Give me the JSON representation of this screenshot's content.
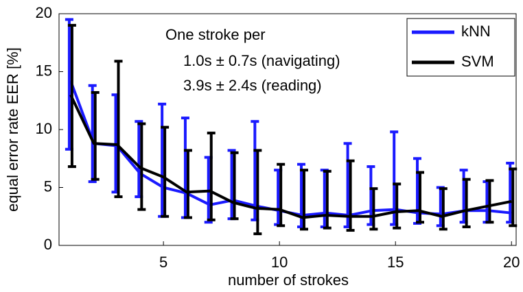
{
  "chart_data": {
    "type": "errorbar-line",
    "xlabel": "number of strokes",
    "ylabel": "equal error rate EER [%]",
    "annotations": [
      "One stroke per",
      "1.0s ± 0.7s (navigating)",
      "3.9s ± 2.4s (reading)"
    ],
    "x": [
      1,
      2,
      3,
      4,
      5,
      6,
      7,
      8,
      9,
      10,
      11,
      12,
      13,
      14,
      15,
      16,
      17,
      18,
      19,
      20
    ],
    "series": [
      {
        "name": "kNN",
        "color": "#1a1aff",
        "values": [
          14.2,
          8.8,
          8.6,
          6.2,
          5.0,
          4.5,
          3.5,
          3.9,
          3.4,
          3.0,
          2.6,
          2.8,
          2.6,
          3.0,
          3.1,
          2.8,
          2.7,
          3.0,
          3.0,
          2.8
        ],
        "lower": [
          8.3,
          5.5,
          4.6,
          4.2,
          2.5,
          2.4,
          2.0,
          2.3,
          2.2,
          1.8,
          1.6,
          1.6,
          1.6,
          1.8,
          1.8,
          1.9,
          1.7,
          2.0,
          2.0,
          2.0
        ],
        "upper": [
          19.5,
          13.8,
          13.0,
          10.7,
          12.2,
          11.0,
          7.6,
          8.2,
          10.7,
          6.5,
          7.0,
          6.5,
          8.8,
          6.8,
          9.8,
          7.5,
          5.0,
          6.5,
          5.5,
          7.1
        ]
      },
      {
        "name": "SVM",
        "color": "#000000",
        "values": [
          13.0,
          8.8,
          8.7,
          6.7,
          5.9,
          4.6,
          4.7,
          3.7,
          3.2,
          3.1,
          2.4,
          2.6,
          2.5,
          2.5,
          2.9,
          3.0,
          2.5,
          3.0,
          3.4,
          3.8
        ],
        "lower": [
          6.8,
          5.7,
          4.2,
          3.1,
          2.5,
          2.4,
          2.2,
          2.3,
          1.0,
          1.7,
          1.4,
          1.5,
          1.3,
          1.4,
          1.5,
          2.0,
          1.4,
          1.6,
          2.0,
          1.7
        ],
        "upper": [
          19.0,
          13.2,
          15.9,
          10.5,
          10.2,
          8.2,
          9.7,
          8.0,
          8.2,
          7.0,
          6.5,
          6.4,
          7.3,
          4.9,
          5.3,
          6.3,
          4.9,
          5.7,
          5.6,
          6.6
        ]
      }
    ],
    "xlim": [
      0.5,
      20.2
    ],
    "xticks": [
      5,
      10,
      15,
      20
    ],
    "ylim": [
      0,
      20
    ],
    "yticks": [
      0,
      5,
      10,
      15,
      20
    ],
    "legend": "upper right"
  }
}
